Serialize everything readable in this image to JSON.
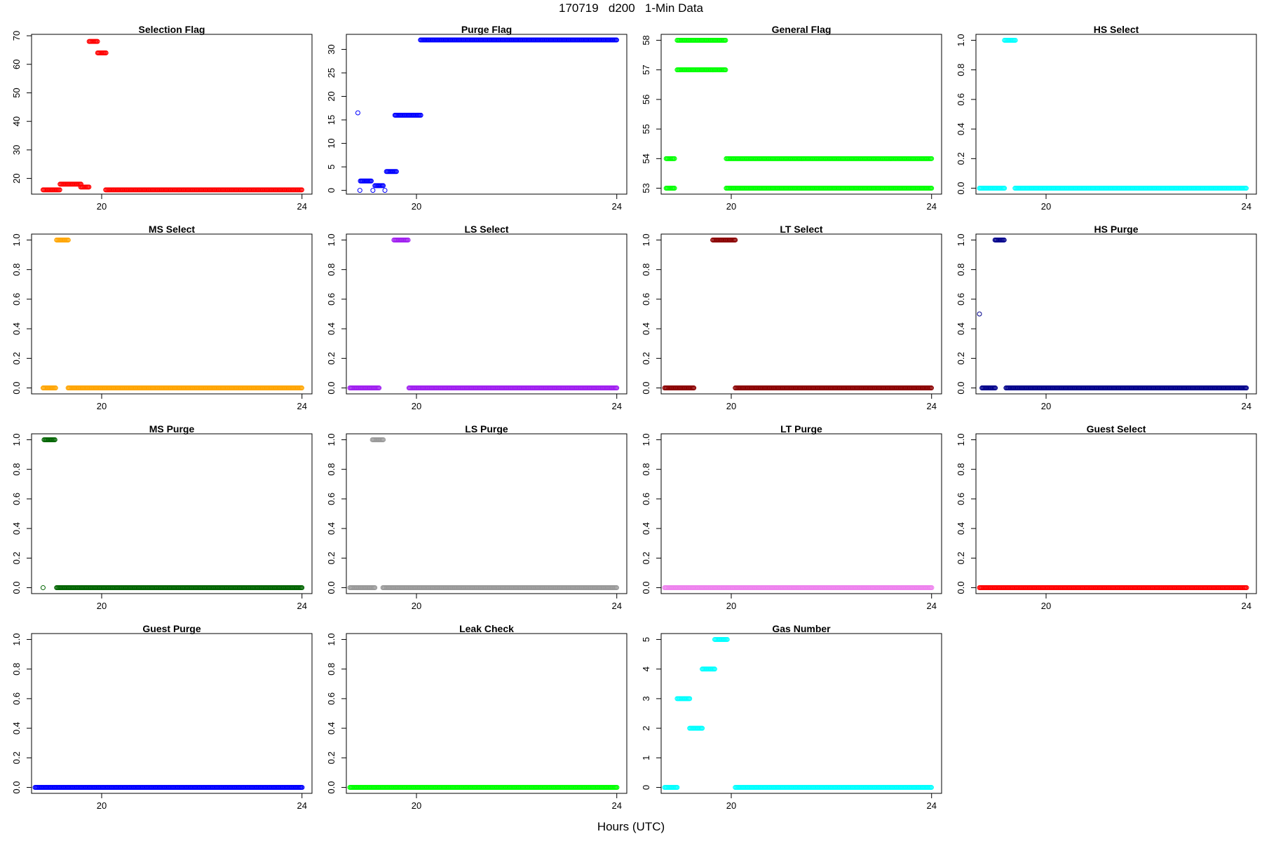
{
  "figure": {
    "title": "170719   d200   1-Min Data",
    "xlabel": "Hours (UTC)"
  },
  "chart_data": [
    {
      "type": "scatter",
      "title": "Selection Flag",
      "color": "#ff0000",
      "xlim": [
        18.6,
        24.2
      ],
      "ylim": [
        14.5,
        70.5
      ],
      "xticks": [
        20,
        24
      ],
      "yticks": [
        20,
        30,
        40,
        50,
        60,
        70
      ],
      "segments": [
        [
          18.83,
          19.17,
          16
        ],
        [
          19.17,
          19.58,
          18
        ],
        [
          19.58,
          19.75,
          17
        ],
        [
          19.75,
          19.92,
          68
        ],
        [
          19.92,
          20.08,
          64
        ],
        [
          20.08,
          24.0,
          16
        ]
      ]
    },
    {
      "type": "scatter",
      "title": "Purge Flag",
      "color": "#0000ff",
      "xlim": [
        18.6,
        24.2
      ],
      "ylim": [
        -0.8,
        33.2
      ],
      "xticks": [
        20,
        24
      ],
      "yticks": [
        0,
        5,
        10,
        15,
        20,
        25,
        30
      ],
      "segments": [
        [
          18.83,
          18.83,
          16.5
        ],
        [
          18.87,
          18.87,
          0
        ],
        [
          18.88,
          19.1,
          2
        ],
        [
          19.13,
          19.13,
          0
        ],
        [
          19.17,
          19.33,
          1
        ],
        [
          19.37,
          19.37,
          0
        ],
        [
          19.4,
          19.6,
          4
        ],
        [
          19.57,
          20.08,
          16
        ],
        [
          20.08,
          24.0,
          32
        ]
      ]
    },
    {
      "type": "scatter",
      "title": "General Flag",
      "color": "#00ff00",
      "xlim": [
        18.6,
        24.2
      ],
      "ylim": [
        52.8,
        58.2
      ],
      "xticks": [
        20,
        24
      ],
      "yticks": [
        53,
        54,
        55,
        56,
        57,
        58
      ],
      "segments": [
        [
          18.7,
          18.87,
          53
        ],
        [
          18.7,
          18.87,
          54
        ],
        [
          18.92,
          19.5,
          57
        ],
        [
          18.92,
          19.5,
          58
        ],
        [
          19.52,
          19.88,
          57
        ],
        [
          19.52,
          19.88,
          58
        ],
        [
          19.9,
          24.0,
          53
        ],
        [
          19.9,
          24.0,
          54
        ]
      ]
    },
    {
      "type": "scatter",
      "title": "HS Select",
      "color": "#00ffff",
      "xlim": [
        18.6,
        24.2
      ],
      "ylim": [
        -0.04,
        1.04
      ],
      "xticks": [
        20,
        24
      ],
      "yticks": [
        0.0,
        0.2,
        0.4,
        0.6,
        0.8,
        1.0
      ],
      "segments": [
        [
          18.67,
          19.17,
          0
        ],
        [
          19.17,
          19.38,
          1
        ],
        [
          19.38,
          24.0,
          0
        ]
      ]
    },
    {
      "type": "scatter",
      "title": "MS Select",
      "color": "#ffa500",
      "xlim": [
        18.6,
        24.2
      ],
      "ylim": [
        -0.04,
        1.04
      ],
      "xticks": [
        20,
        24
      ],
      "yticks": [
        0.0,
        0.2,
        0.4,
        0.6,
        0.8,
        1.0
      ],
      "segments": [
        [
          18.83,
          19.08,
          0
        ],
        [
          19.1,
          19.33,
          1
        ],
        [
          19.33,
          24.0,
          0
        ]
      ]
    },
    {
      "type": "scatter",
      "title": "LS Select",
      "color": "#a020f0",
      "xlim": [
        18.6,
        24.2
      ],
      "ylim": [
        -0.04,
        1.04
      ],
      "xticks": [
        20,
        24
      ],
      "yticks": [
        0.0,
        0.2,
        0.4,
        0.6,
        0.8,
        1.0
      ],
      "segments": [
        [
          18.67,
          19.25,
          0
        ],
        [
          19.55,
          19.83,
          1
        ],
        [
          19.85,
          24.0,
          0
        ]
      ]
    },
    {
      "type": "scatter",
      "title": "LT Select",
      "color": "#8b0000",
      "xlim": [
        18.6,
        24.2
      ],
      "ylim": [
        -0.04,
        1.04
      ],
      "xticks": [
        20,
        24
      ],
      "yticks": [
        0.0,
        0.2,
        0.4,
        0.6,
        0.8,
        1.0
      ],
      "segments": [
        [
          18.67,
          19.25,
          0
        ],
        [
          19.63,
          20.08,
          1
        ],
        [
          20.08,
          24.0,
          0
        ]
      ]
    },
    {
      "type": "scatter",
      "title": "HS Purge",
      "color": "#00008b",
      "xlim": [
        18.6,
        24.2
      ],
      "ylim": [
        -0.04,
        1.04
      ],
      "xticks": [
        20,
        24
      ],
      "yticks": [
        0.0,
        0.2,
        0.4,
        0.6,
        0.8,
        1.0
      ],
      "segments": [
        [
          18.67,
          18.67,
          0.5
        ],
        [
          18.72,
          18.98,
          0
        ],
        [
          18.98,
          19.17,
          1
        ],
        [
          19.2,
          24.0,
          0
        ]
      ]
    },
    {
      "type": "scatter",
      "title": "MS Purge",
      "color": "#006400",
      "xlim": [
        18.6,
        24.2
      ],
      "ylim": [
        -0.04,
        1.04
      ],
      "xticks": [
        20,
        24
      ],
      "yticks": [
        0.0,
        0.2,
        0.4,
        0.6,
        0.8,
        1.0
      ],
      "segments": [
        [
          18.83,
          18.83,
          0
        ],
        [
          18.85,
          19.07,
          1
        ],
        [
          19.1,
          24.0,
          0
        ]
      ]
    },
    {
      "type": "scatter",
      "title": "LS Purge",
      "color": "#999999",
      "xlim": [
        18.6,
        24.2
      ],
      "ylim": [
        -0.04,
        1.04
      ],
      "xticks": [
        20,
        24
      ],
      "yticks": [
        0.0,
        0.2,
        0.4,
        0.6,
        0.8,
        1.0
      ],
      "segments": [
        [
          18.67,
          19.17,
          0
        ],
        [
          19.12,
          19.33,
          1
        ],
        [
          19.33,
          24.0,
          0
        ]
      ]
    },
    {
      "type": "scatter",
      "title": "LT Purge",
      "color": "#ee82ee",
      "xlim": [
        18.6,
        24.2
      ],
      "ylim": [
        -0.04,
        1.04
      ],
      "xticks": [
        20,
        24
      ],
      "yticks": [
        0.0,
        0.2,
        0.4,
        0.6,
        0.8,
        1.0
      ],
      "segments": [
        [
          18.67,
          24.0,
          0
        ]
      ]
    },
    {
      "type": "scatter",
      "title": "Guest Select",
      "color": "#ff0000",
      "xlim": [
        18.6,
        24.2
      ],
      "ylim": [
        -0.04,
        1.04
      ],
      "xticks": [
        20,
        24
      ],
      "yticks": [
        0.0,
        0.2,
        0.4,
        0.6,
        0.8,
        1.0
      ],
      "segments": [
        [
          18.67,
          24.0,
          0
        ]
      ]
    },
    {
      "type": "scatter",
      "title": "Guest Purge",
      "color": "#0000ff",
      "xlim": [
        18.6,
        24.2
      ],
      "ylim": [
        -0.04,
        1.04
      ],
      "xticks": [
        20,
        24
      ],
      "yticks": [
        0.0,
        0.2,
        0.4,
        0.6,
        0.8,
        1.0
      ],
      "segments": [
        [
          18.67,
          24.0,
          0
        ]
      ]
    },
    {
      "type": "scatter",
      "title": "Leak Check",
      "color": "#00ff00",
      "xlim": [
        18.6,
        24.2
      ],
      "ylim": [
        -0.04,
        1.04
      ],
      "xticks": [
        20,
        24
      ],
      "yticks": [
        0.0,
        0.2,
        0.4,
        0.6,
        0.8,
        1.0
      ],
      "segments": [
        [
          18.67,
          24.0,
          0
        ]
      ]
    },
    {
      "type": "scatter",
      "title": "Gas Number",
      "color": "#00ffff",
      "xlim": [
        18.6,
        24.2
      ],
      "ylim": [
        -0.2,
        5.2
      ],
      "xticks": [
        20,
        24
      ],
      "yticks": [
        0,
        1,
        2,
        3,
        4,
        5
      ],
      "segments": [
        [
          18.67,
          18.92,
          0
        ],
        [
          18.92,
          19.17,
          3
        ],
        [
          19.17,
          19.42,
          2
        ],
        [
          19.42,
          19.67,
          4
        ],
        [
          19.67,
          19.92,
          5
        ],
        [
          20.08,
          24.0,
          0
        ]
      ]
    }
  ]
}
